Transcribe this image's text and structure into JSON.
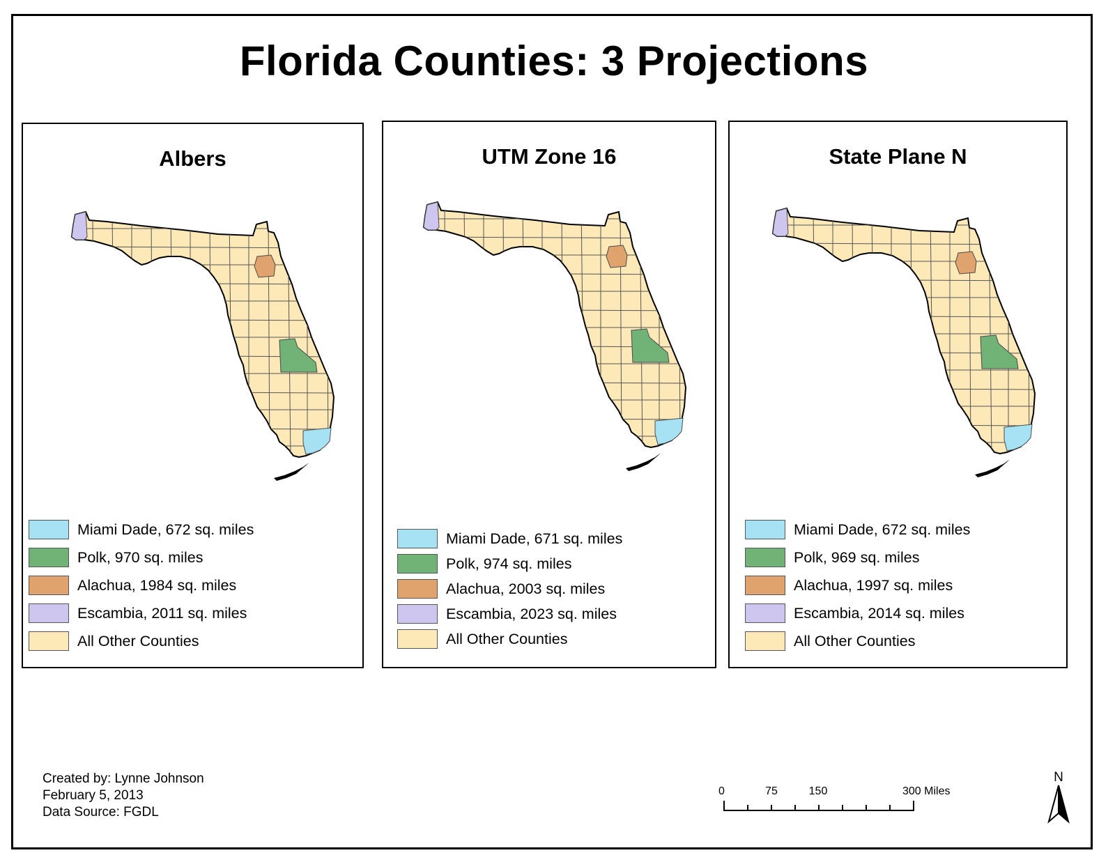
{
  "title": "Florida Counties: 3 Projections",
  "colors": {
    "miami_dade": "#a6e1f4",
    "polk": "#71b277",
    "alachua": "#e0a36e",
    "escambia": "#cfc6f0",
    "other": "#fde8b8"
  },
  "panels": [
    {
      "title": "Albers",
      "legend": [
        {
          "label": "Miami Dade, 672 sq. miles",
          "color": "#a6e1f4"
        },
        {
          "label": "Polk, 970 sq. miles",
          "color": "#71b277"
        },
        {
          "label": "Alachua, 1984 sq. miles",
          "color": "#e0a36e"
        },
        {
          "label": "Escambia, 2011 sq. miles",
          "color": "#cfc6f0"
        },
        {
          "label": "All Other Counties",
          "color": "#fde8b8"
        }
      ]
    },
    {
      "title": "UTM Zone 16",
      "legend": [
        {
          "label": "Miami Dade, 671 sq. miles",
          "color": "#a6e1f4"
        },
        {
          "label": "Polk, 974 sq. miles",
          "color": "#71b277"
        },
        {
          "label": "Alachua, 2003 sq. miles",
          "color": "#e0a36e"
        },
        {
          "label": "Escambia, 2023 sq. miles",
          "color": "#cfc6f0"
        },
        {
          "label": "All Other Counties",
          "color": "#fde8b8"
        }
      ]
    },
    {
      "title": "State Plane N",
      "legend": [
        {
          "label": "Miami Dade, 672 sq. miles",
          "color": "#a6e1f4"
        },
        {
          "label": "Polk, 969 sq. miles",
          "color": "#71b277"
        },
        {
          "label": "Alachua, 1997 sq. miles",
          "color": "#e0a36e"
        },
        {
          "label": "Escambia, 2014 sq. miles",
          "color": "#cfc6f0"
        },
        {
          "label": "All Other Counties",
          "color": "#fde8b8"
        }
      ]
    }
  ],
  "credits": {
    "created_by": "Created by: Lynne Johnson",
    "date": "February 5, 2013",
    "source": "Data Source: FGDL"
  },
  "scale": {
    "ticks": [
      "0",
      "75",
      "150",
      "300 Miles"
    ]
  },
  "north_label": "N"
}
